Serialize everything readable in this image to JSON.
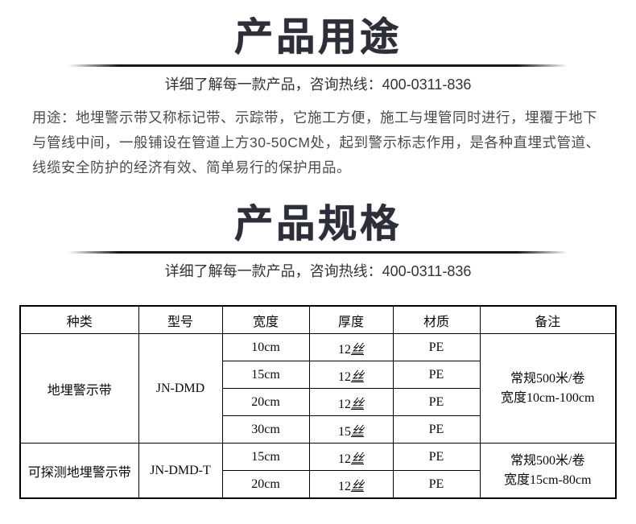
{
  "sections": {
    "usage": {
      "title": "产品用途",
      "subtitle": "详细了解每一款产品，咨询热线：400-0311-836",
      "paragraph": "用途：地埋警示带又称标记带、示踪带，它施工方便，施工与埋管同时进行，埋覆于地下与管线中间，一般铺设在管道上方30-50CM处，起到警示标志作用，是各种直埋式管道、线缆安全防护的经济有效、简单易行的保护用品。"
    },
    "specs": {
      "title": "产品规格",
      "subtitle": "详细了解每一款产品，咨询热线：400-0311-836"
    }
  },
  "spec_table": {
    "headers": [
      "种类",
      "型号",
      "宽度",
      "厚度",
      "材质",
      "备注"
    ],
    "groups": [
      {
        "category": "地埋警示带",
        "model": "JN-DMD",
        "rows": [
          {
            "width": "10cm",
            "thickness_value": "12",
            "thickness_unit": "丝",
            "material": "PE"
          },
          {
            "width": "15cm",
            "thickness_value": "12",
            "thickness_unit": "丝",
            "material": "PE"
          },
          {
            "width": "20cm",
            "thickness_value": "12",
            "thickness_unit": "丝",
            "material": "PE"
          },
          {
            "width": "30cm",
            "thickness_value": "15",
            "thickness_unit": "丝",
            "material": "PE"
          }
        ],
        "remark": {
          "line1": "常规500米/卷",
          "line2": "宽度10cm-100cm"
        }
      },
      {
        "category": "可探测地埋警示带",
        "model": "JN-DMD-T",
        "rows": [
          {
            "width": "15cm",
            "thickness_value": "12",
            "thickness_unit": "丝",
            "material": "PE"
          },
          {
            "width": "20cm",
            "thickness_value": "12",
            "thickness_unit": "丝",
            "material": "PE"
          }
        ],
        "remark": {
          "line1": "常规500米/卷",
          "line2": "宽度15cm-80cm"
        }
      }
    ]
  }
}
